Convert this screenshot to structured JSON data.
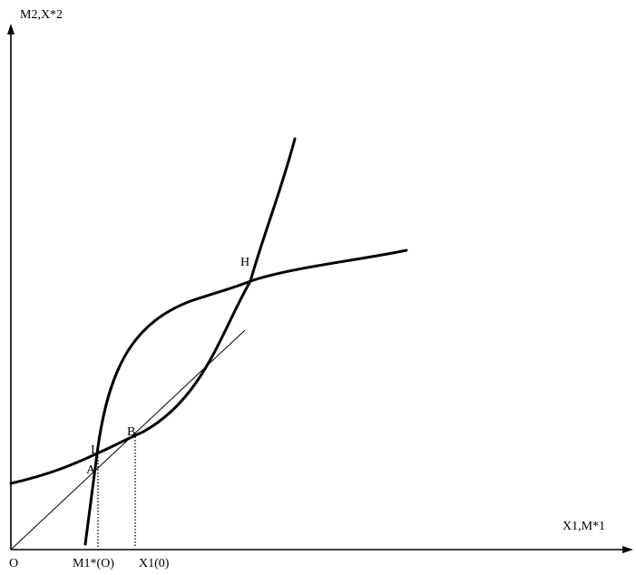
{
  "y_axis_label": "M2,X*2",
  "x_axis_label": "X1,M*1",
  "origin_label": "O",
  "tick_labels": {
    "m1_star_0": "M1*(O)",
    "x1_0": "X1(0)"
  },
  "point_labels": {
    "H": "H",
    "B": "B",
    "I": "I",
    "A": "A"
  },
  "stroke_color": "#000000"
}
